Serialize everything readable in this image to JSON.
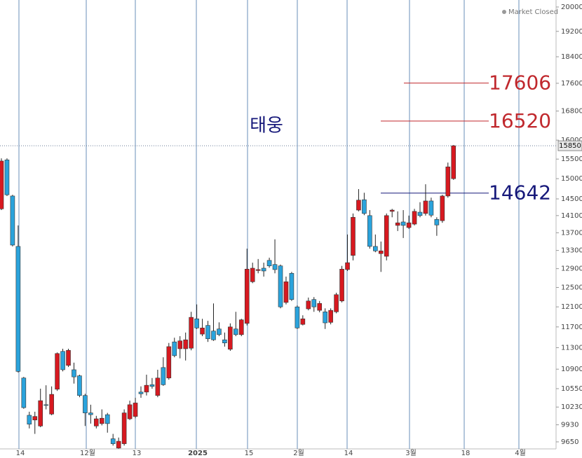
{
  "chart_data": {
    "type": "candlestick",
    "title": "태웅",
    "status": "Market Closed",
    "log_scale": true,
    "ylim": [
      9537,
      20236
    ],
    "yticks": [
      20000,
      19200,
      18400,
      17600,
      16800,
      16000,
      15500,
      15000,
      14500,
      14100,
      13700,
      13300,
      12900,
      12500,
      12100,
      11700,
      11300,
      10900,
      10550,
      10230,
      9930,
      9650
    ],
    "xticks": [
      "14",
      "12월",
      "13",
      "2025",
      "15",
      "2월",
      "14",
      "3월",
      "18",
      "4월"
    ],
    "up_color": "#d71920",
    "down_color": "#2aa3dc",
    "last_price": 15850,
    "annotations": [
      {
        "value": 17606,
        "color": "#c0282d"
      },
      {
        "value": 16520,
        "color": "#c0282d"
      },
      {
        "value": 14642,
        "color": "#16187a"
      }
    ],
    "open": [
      14260,
      15480,
      14570,
      13390,
      10740,
      10090,
      10010,
      9910,
      10270,
      10110,
      10540,
      11230,
      10970,
      10890,
      10780,
      10430,
      10130,
      9910,
      9950,
      10100,
      9700,
      9550,
      9620,
      10030,
      10070,
      10490,
      10490,
      10620,
      10430,
      10930,
      10740,
      11410,
      11280,
      11280,
      11290,
      11860,
      11560,
      11730,
      11620,
      11660,
      11450,
      11270,
      11660,
      11550,
      11770,
      12620,
      12860,
      12910,
      13080,
      12990,
      12960,
      12190,
      12800,
      12100,
      11750,
      12060,
      12250,
      12030,
      12000,
      11790,
      12000,
      12220,
      12880,
      13190,
      14230,
      14480,
      14100,
      13390,
      13230,
      13170,
      14200,
      13870,
      13950,
      13820,
      13900,
      14180,
      14150,
      14450,
      14010,
      13980,
      14570,
      15000
    ],
    "high": [
      15520,
      15520,
      14600,
      13870,
      10760,
      10150,
      10150,
      10550,
      10610,
      10590,
      11210,
      11280,
      11280,
      11020,
      10800,
      10460,
      10270,
      10080,
      10190,
      10130,
      9780,
      9720,
      10190,
      10340,
      10390,
      10590,
      10800,
      10740,
      10890,
      11120,
      11390,
      11490,
      11520,
      11590,
      12000,
      12150,
      11860,
      11820,
      12170,
      11790,
      11590,
      11770,
      12000,
      11860,
      13340,
      13030,
      13110,
      13030,
      13140,
      13550,
      12990,
      12730,
      12830,
      12130,
      11930,
      12290,
      12300,
      12220,
      12070,
      12070,
      12390,
      12960,
      13660,
      14150,
      14740,
      14650,
      14230,
      13660,
      13500,
      14150,
      14260,
      14200,
      14230,
      14100,
      14260,
      14420,
      14860,
      14530,
      14060,
      14600,
      15410,
      15870
    ],
    "low": [
      14230,
      14570,
      13390,
      10840,
      10200,
      9870,
      9780,
      9890,
      10190,
      10090,
      10510,
      10860,
      10940,
      10640,
      10400,
      9910,
      9950,
      9870,
      9920,
      9800,
      9590,
      9540,
      9590,
      10010,
      10040,
      10390,
      10430,
      10550,
      10400,
      10600,
      10710,
      11120,
      11100,
      11060,
      11250,
      11660,
      11520,
      11410,
      11430,
      11520,
      11320,
      11240,
      11520,
      11520,
      11730,
      12590,
      12800,
      12730,
      12920,
      12800,
      12070,
      12150,
      12220,
      11660,
      11730,
      12030,
      12000,
      11990,
      11660,
      11750,
      11970,
      12190,
      12850,
      13080,
      14200,
      14110,
      13340,
      13260,
      12830,
      13080,
      14060,
      13740,
      13580,
      13790,
      13870,
      14060,
      14100,
      14060,
      13630,
      13930,
      14530,
      14970
    ],
    "close": [
      15450,
      14600,
      13420,
      10860,
      10220,
      9940,
      10070,
      10340,
      10260,
      10450,
      11190,
      10890,
      11250,
      10760,
      10430,
      10130,
      10100,
      10030,
      10040,
      9950,
      9620,
      9660,
      10130,
      10270,
      10300,
      10460,
      10610,
      10590,
      10740,
      10620,
      11320,
      11150,
      11430,
      11450,
      11890,
      11680,
      11680,
      11470,
      11450,
      11550,
      11390,
      11700,
      11550,
      11840,
      12890,
      12910,
      12880,
      12850,
      12960,
      12880,
      12100,
      12620,
      12250,
      11680,
      11860,
      12220,
      12100,
      12170,
      11780,
      12030,
      12350,
      12890,
      13030,
      14060,
      14470,
      14150,
      13390,
      13290,
      13290,
      14100,
      14230,
      13930,
      13870,
      13930,
      14200,
      14100,
      14450,
      14110,
      13880,
      14570,
      15300,
      15850
    ]
  }
}
